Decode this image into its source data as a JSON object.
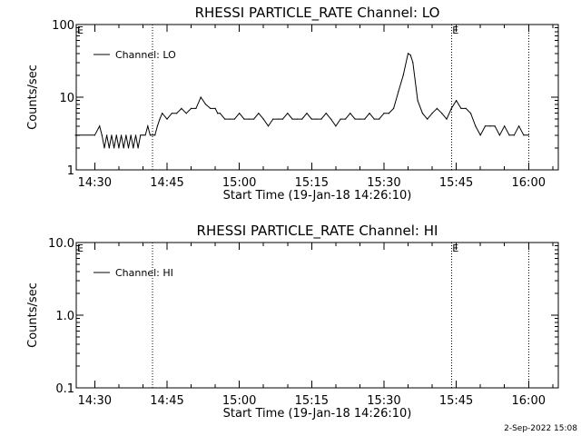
{
  "footer_stamp": "2-Sep-2022 15:08",
  "chart_data": [
    {
      "type": "line",
      "title": "RHESSI PARTICLE_RATE Channel: LO",
      "xlabel": "Start Time (19-Jan-18 14:26:10)",
      "ylabel": "Counts/sec",
      "yscale": "log",
      "ylim": [
        1,
        100
      ],
      "ytick_labels": [
        "1",
        "10",
        "100"
      ],
      "xlim": [
        "14:26:10",
        "16:06:10"
      ],
      "xtick_labels": [
        "14:30",
        "14:45",
        "15:00",
        "15:15",
        "15:30",
        "15:45",
        "16:00"
      ],
      "marker_label": "E",
      "vertical_markers": [
        "14:42",
        "15:44",
        "16:00"
      ],
      "legend": {
        "label": "Channel: LO",
        "position": "top-left"
      },
      "series": [
        {
          "name": "Channel: LO",
          "x": [
            "14:26",
            "14:30",
            "14:31",
            "14:31:30",
            "14:32",
            "14:32:30",
            "14:33",
            "14:33:30",
            "14:34",
            "14:34:30",
            "14:35",
            "14:35:30",
            "14:36",
            "14:36:30",
            "14:37",
            "14:37:30",
            "14:38",
            "14:38:30",
            "14:39",
            "14:39:30",
            "14:40",
            "14:40:30",
            "14:41",
            "14:41:30",
            "14:42",
            "14:42:30",
            "14:43",
            "14:43:30",
            "14:44",
            "14:45",
            "14:46",
            "14:47",
            "14:48",
            "14:49",
            "14:50",
            "14:51",
            "14:52",
            "14:53",
            "14:54",
            "14:55",
            "14:55:30",
            "14:56",
            "14:57",
            "14:58",
            "14:59",
            "15:00",
            "15:01",
            "15:02",
            "15:03",
            "15:04",
            "15:05",
            "15:06",
            "15:07",
            "15:08",
            "15:09",
            "15:10",
            "15:11",
            "15:12",
            "15:13",
            "15:14",
            "15:15",
            "15:16",
            "15:17",
            "15:18",
            "15:19",
            "15:20",
            "15:21",
            "15:22",
            "15:23",
            "15:24",
            "15:25",
            "15:26",
            "15:27",
            "15:28",
            "15:29",
            "15:30",
            "15:31",
            "15:32",
            "15:33",
            "15:34",
            "15:35",
            "15:35:30",
            "15:36",
            "15:37",
            "15:38",
            "15:39",
            "15:40",
            "15:41",
            "15:42",
            "15:43",
            "15:44",
            "15:45",
            "15:46",
            "15:47",
            "15:48",
            "15:49",
            "15:50",
            "15:51",
            "15:52",
            "15:53",
            "15:54",
            "15:55",
            "15:56",
            "15:57",
            "15:58",
            "15:59",
            "16:00"
          ],
          "values": [
            3,
            3,
            4,
            3,
            2,
            3,
            2,
            3,
            2,
            3,
            2,
            3,
            2,
            3,
            2,
            3,
            2,
            3,
            2,
            3,
            3,
            3,
            4,
            3,
            3,
            3,
            4,
            5,
            6,
            5,
            6,
            6,
            7,
            6,
            7,
            7,
            10,
            8,
            7,
            7,
            6,
            6,
            5,
            5,
            5,
            6,
            5,
            5,
            5,
            6,
            5,
            4,
            5,
            5,
            5,
            6,
            5,
            5,
            5,
            6,
            5,
            5,
            5,
            6,
            5,
            4,
            5,
            5,
            6,
            5,
            5,
            5,
            6,
            5,
            5,
            6,
            6,
            7,
            12,
            20,
            40,
            38,
            30,
            9,
            6,
            5,
            6,
            7,
            6,
            5,
            7,
            9,
            7,
            7,
            6,
            4,
            3,
            4,
            4,
            4,
            3,
            4,
            3,
            3,
            4,
            3,
            3
          ]
        }
      ]
    },
    {
      "type": "line",
      "title": "RHESSI PARTICLE_RATE Channel: HI",
      "xlabel": "Start Time (19-Jan-18 14:26:10)",
      "ylabel": "Counts/sec",
      "yscale": "log",
      "ylim": [
        0.1,
        10
      ],
      "ytick_labels": [
        "0.1",
        "1.0",
        "10.0"
      ],
      "xlim": [
        "14:26:10",
        "16:06:10"
      ],
      "xtick_labels": [
        "14:30",
        "14:45",
        "15:00",
        "15:15",
        "15:30",
        "15:45",
        "16:00"
      ],
      "marker_label": "E",
      "vertical_markers": [
        "14:42",
        "15:44",
        "16:00"
      ],
      "legend": {
        "label": "Channel: HI",
        "position": "top-left"
      },
      "series": [
        {
          "name": "Channel: HI",
          "x": [],
          "values": []
        }
      ]
    }
  ]
}
